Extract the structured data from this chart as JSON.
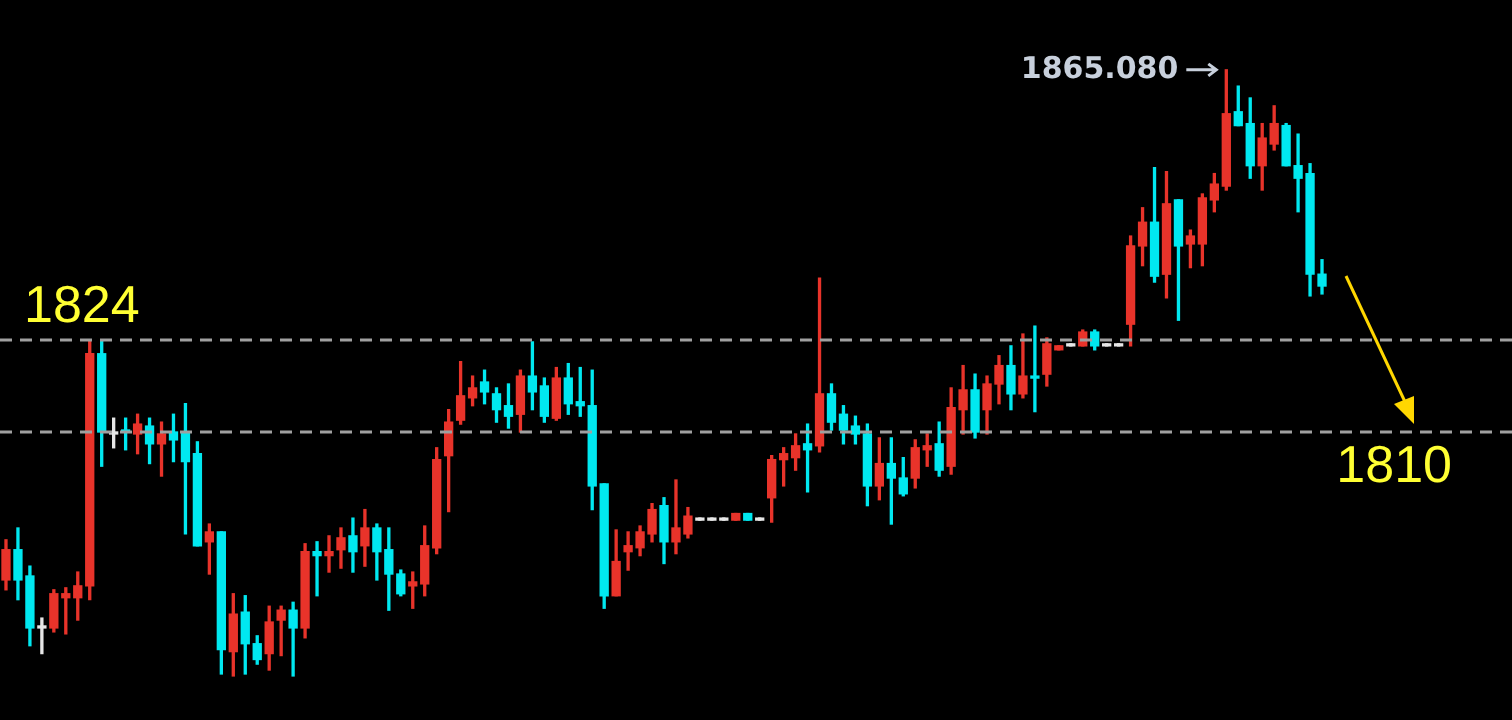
{
  "chart_data": {
    "type": "candlestick",
    "categories": [
      null,
      null,
      null,
      null,
      null,
      null,
      null,
      null,
      null,
      null,
      null,
      null,
      null,
      null,
      null,
      null,
      null,
      null,
      null,
      null,
      null,
      null,
      null,
      null,
      null,
      null,
      null,
      null,
      null,
      null,
      null,
      null,
      null,
      null,
      null,
      null,
      null,
      null,
      null,
      null,
      null,
      null,
      null,
      null,
      null,
      null,
      null,
      null,
      null,
      null,
      null,
      null,
      null,
      null,
      null,
      null,
      null,
      null,
      null,
      null,
      null,
      null,
      null,
      null,
      null,
      null,
      null,
      null,
      null,
      null,
      null,
      null,
      null,
      null,
      null,
      null,
      null,
      null,
      null,
      null,
      null,
      null,
      null,
      null,
      null,
      null,
      null,
      null,
      null,
      null,
      null,
      null,
      null,
      null,
      null,
      null,
      null,
      null,
      null,
      null,
      null,
      null,
      null,
      null,
      null,
      null,
      null,
      null,
      null,
      null,
      null
    ],
    "ohlc": [
      [
        1787.5,
        1793.6,
        1786.0,
        1792.1
      ],
      [
        1792.1,
        1795.4,
        1784.5,
        1787.5
      ],
      [
        1788.1,
        1789.6,
        1777.5,
        1780.2
      ],
      [
        1780.2,
        1781.7,
        1776.3,
        1780.2
      ],
      [
        1780.2,
        1786.0,
        1779.6,
        1785.4
      ],
      [
        1784.8,
        1786.3,
        1779.3,
        1785.4
      ],
      [
        1784.8,
        1788.7,
        1781.4,
        1786.6
      ],
      [
        1786.6,
        1824.0,
        1784.5,
        1821.9
      ],
      [
        1821.9,
        1824.0,
        1804.8,
        1810.0
      ],
      [
        1809.7,
        1812.1,
        1807.6,
        1809.7
      ],
      [
        1810.3,
        1812.1,
        1807.3,
        1810.0
      ],
      [
        1809.7,
        1812.7,
        1806.7,
        1811.2
      ],
      [
        1810.9,
        1812.1,
        1805.2,
        1808.2
      ],
      [
        1808.2,
        1811.5,
        1803.3,
        1809.7
      ],
      [
        1810.0,
        1812.7,
        1805.5,
        1808.8
      ],
      [
        1810.0,
        1814.3,
        1794.5,
        1805.5
      ],
      [
        1806.7,
        1808.5,
        1792.7,
        1792.7
      ],
      [
        1793.3,
        1796.0,
        1788.4,
        1794.8
      ],
      [
        1794.8,
        1794.8,
        1773.2,
        1776.9
      ],
      [
        1776.6,
        1785.4,
        1772.9,
        1782.3
      ],
      [
        1782.6,
        1785.1,
        1773.2,
        1777.8
      ],
      [
        1777.8,
        1779.0,
        1774.7,
        1775.4
      ],
      [
        1776.3,
        1783.5,
        1773.8,
        1781.1
      ],
      [
        1781.4,
        1783.5,
        1776.0,
        1782.9
      ],
      [
        1782.9,
        1784.1,
        1772.9,
        1780.2
      ],
      [
        1780.2,
        1793.0,
        1778.7,
        1791.8
      ],
      [
        1791.8,
        1793.3,
        1785.1,
        1791.2
      ],
      [
        1791.2,
        1794.2,
        1788.7,
        1791.8
      ],
      [
        1792.1,
        1795.4,
        1789.3,
        1793.9
      ],
      [
        1794.2,
        1796.9,
        1788.7,
        1791.8
      ],
      [
        1792.7,
        1798.2,
        1789.6,
        1795.4
      ],
      [
        1795.4,
        1796.0,
        1787.5,
        1791.8
      ],
      [
        1792.1,
        1795.4,
        1782.9,
        1788.4
      ],
      [
        1788.4,
        1789.0,
        1785.1,
        1785.4
      ],
      [
        1786.6,
        1788.7,
        1783.2,
        1787.2
      ],
      [
        1786.9,
        1795.7,
        1785.1,
        1792.7
      ],
      [
        1792.4,
        1807.6,
        1791.5,
        1805.8
      ],
      [
        1806.4,
        1813.4,
        1797.9,
        1811.5
      ],
      [
        1811.8,
        1820.7,
        1811.2,
        1815.5
      ],
      [
        1815.2,
        1818.5,
        1814.0,
        1816.7
      ],
      [
        1817.6,
        1819.4,
        1814.3,
        1816.1
      ],
      [
        1815.8,
        1816.7,
        1811.5,
        1813.4
      ],
      [
        1814.0,
        1817.3,
        1810.6,
        1812.4
      ],
      [
        1812.7,
        1819.4,
        1810.0,
        1818.5
      ],
      [
        1818.5,
        1823.7,
        1813.4,
        1816.1
      ],
      [
        1817.0,
        1818.2,
        1811.5,
        1812.4
      ],
      [
        1812.1,
        1819.8,
        1811.8,
        1818.2
      ],
      [
        1818.2,
        1820.4,
        1812.7,
        1814.3
      ],
      [
        1814.6,
        1819.8,
        1812.4,
        1814.0
      ],
      [
        1814.0,
        1819.4,
        1798.2,
        1801.8
      ],
      [
        1802.1,
        1802.1,
        1783.2,
        1785.1
      ],
      [
        1785.1,
        1795.1,
        1785.1,
        1790.3
      ],
      [
        1791.8,
        1794.8,
        1789.0,
        1792.7
      ],
      [
        1792.4,
        1795.7,
        1791.2,
        1794.8
      ],
      [
        1794.5,
        1799.1,
        1793.3,
        1798.2
      ],
      [
        1798.8,
        1800.0,
        1790.0,
        1793.3
      ],
      [
        1793.3,
        1802.7,
        1791.5,
        1795.4
      ],
      [
        1794.5,
        1798.5,
        1793.9,
        1797.2
      ],
      [
        1796.6,
        1796.6,
        1796.6,
        1796.6
      ],
      [
        1796.6,
        1796.6,
        1796.6,
        1796.6
      ],
      [
        1796.6,
        1796.6,
        1796.6,
        1796.6
      ],
      [
        1796.6,
        1797.6,
        1796.6,
        1797.6
      ],
      [
        1797.6,
        1797.6,
        1796.6,
        1796.6
      ],
      [
        1796.6,
        1796.6,
        1796.6,
        1796.6
      ],
      [
        1800.0,
        1806.4,
        1796.3,
        1805.8
      ],
      [
        1805.8,
        1807.6,
        1801.8,
        1806.7
      ],
      [
        1806.1,
        1809.7,
        1804.2,
        1807.9
      ],
      [
        1808.2,
        1811.2,
        1800.9,
        1807.3
      ],
      [
        1807.9,
        1833.4,
        1807.0,
        1815.8
      ],
      [
        1815.8,
        1817.3,
        1810.3,
        1811.5
      ],
      [
        1812.7,
        1814.0,
        1808.2,
        1810.3
      ],
      [
        1810.9,
        1812.4,
        1808.2,
        1809.7
      ],
      [
        1809.7,
        1811.2,
        1798.8,
        1801.8
      ],
      [
        1801.8,
        1809.1,
        1799.7,
        1805.2
      ],
      [
        1805.2,
        1809.1,
        1796.0,
        1803.0
      ],
      [
        1803.0,
        1806.1,
        1800.3,
        1800.6
      ],
      [
        1803.0,
        1808.8,
        1801.5,
        1807.6
      ],
      [
        1807.3,
        1809.7,
        1804.8,
        1807.9
      ],
      [
        1808.2,
        1811.5,
        1803.3,
        1804.2
      ],
      [
        1804.8,
        1816.7,
        1803.6,
        1813.7
      ],
      [
        1813.4,
        1820.1,
        1809.7,
        1816.4
      ],
      [
        1816.4,
        1818.8,
        1809.1,
        1810.0
      ],
      [
        1813.4,
        1818.5,
        1809.7,
        1817.3
      ],
      [
        1817.3,
        1821.6,
        1814.3,
        1820.1
      ],
      [
        1820.1,
        1823.1,
        1813.4,
        1815.8
      ],
      [
        1815.8,
        1824.9,
        1815.2,
        1818.5
      ],
      [
        1818.5,
        1826.1,
        1813.1,
        1818.2
      ],
      [
        1818.8,
        1824.3,
        1817.0,
        1823.4
      ],
      [
        1822.5,
        1823.1,
        1822.5,
        1823.1
      ],
      [
        1823.1,
        1823.1,
        1823.1,
        1823.1
      ],
      [
        1823.1,
        1825.5,
        1823.1,
        1825.2
      ],
      [
        1825.2,
        1825.5,
        1822.5,
        1823.1
      ],
      [
        1823.1,
        1823.1,
        1823.1,
        1823.1
      ],
      [
        1823.1,
        1823.1,
        1823.1,
        1823.1
      ],
      [
        1826.4,
        1839.8,
        1823.1,
        1838.3
      ],
      [
        1838.3,
        1844.1,
        1835.3,
        1841.9
      ],
      [
        1841.9,
        1850.2,
        1832.8,
        1833.7
      ],
      [
        1834.0,
        1849.6,
        1830.4,
        1844.7
      ],
      [
        1845.3,
        1845.3,
        1827.0,
        1838.3
      ],
      [
        1838.6,
        1840.7,
        1835.0,
        1839.8
      ],
      [
        1838.6,
        1846.2,
        1835.3,
        1845.6
      ],
      [
        1845.3,
        1849.3,
        1843.5,
        1847.7
      ],
      [
        1847.4,
        1865.08,
        1846.8,
        1858.4
      ],
      [
        1858.7,
        1862.6,
        1856.6,
        1856.6
      ],
      [
        1856.9,
        1860.8,
        1848.6,
        1850.5
      ],
      [
        1850.5,
        1856.9,
        1846.8,
        1854.7
      ],
      [
        1853.8,
        1859.6,
        1852.9,
        1856.9
      ],
      [
        1856.6,
        1856.9,
        1850.5,
        1850.5
      ],
      [
        1850.5,
        1855.3,
        1843.5,
        1848.6
      ],
      [
        1849.3,
        1850.8,
        1830.7,
        1834.0
      ],
      [
        1834.0,
        1836.2,
        1831.0,
        1832.2
      ]
    ],
    "colors": [
      "#e8332a",
      "#00e8f0",
      "#00e8f0",
      "#e6e6e6",
      "#e8332a",
      "#e8332a",
      "#e8332a",
      "#e8332a",
      "#00e8f0",
      "#e6e6e6",
      "#00e8f0",
      "#e8332a",
      "#00e8f0",
      "#e8332a",
      "#00e8f0",
      "#00e8f0",
      "#00e8f0",
      "#e8332a",
      "#00e8f0",
      "#e8332a",
      "#00e8f0",
      "#00e8f0",
      "#e8332a",
      "#e8332a",
      "#00e8f0",
      "#e8332a",
      "#00e8f0",
      "#e8332a",
      "#e8332a",
      "#00e8f0",
      "#e8332a",
      "#00e8f0",
      "#00e8f0",
      "#00e8f0",
      "#e8332a",
      "#e8332a",
      "#e8332a",
      "#e8332a",
      "#e8332a",
      "#e8332a",
      "#00e8f0",
      "#00e8f0",
      "#00e8f0",
      "#e8332a",
      "#00e8f0",
      "#00e8f0",
      "#e8332a",
      "#00e8f0",
      "#00e8f0",
      "#00e8f0",
      "#00e8f0",
      "#e8332a",
      "#e8332a",
      "#e8332a",
      "#e8332a",
      "#00e8f0",
      "#e8332a",
      "#e8332a",
      "#e6e6e6",
      "#e6e6e6",
      "#e6e6e6",
      "#e8332a",
      "#00e8f0",
      "#e6e6e6",
      "#e8332a",
      "#e8332a",
      "#e8332a",
      "#00e8f0",
      "#e8332a",
      "#00e8f0",
      "#00e8f0",
      "#00e8f0",
      "#00e8f0",
      "#e8332a",
      "#00e8f0",
      "#00e8f0",
      "#e8332a",
      "#e8332a",
      "#00e8f0",
      "#e8332a",
      "#e8332a",
      "#00e8f0",
      "#e8332a",
      "#e8332a",
      "#00e8f0",
      "#e8332a",
      "#00e8f0",
      "#e8332a",
      "#e8332a",
      "#e6e6e6",
      "#e8332a",
      "#00e8f0",
      "#e6e6e6",
      "#e6e6e6",
      "#e8332a",
      "#e8332a",
      "#00e8f0",
      "#e8332a",
      "#00e8f0",
      "#e8332a",
      "#e8332a",
      "#e8332a",
      "#e8332a",
      "#00e8f0",
      "#00e8f0",
      "#e8332a",
      "#e8332a",
      "#00e8f0",
      "#00e8f0",
      "#00e8f0",
      "#00e8f0"
    ],
    "ylim": [
      1766.2,
      1875.7
    ],
    "tick_labels": false,
    "legend": false,
    "ref_lines": [
      {
        "axis": "y",
        "value": 1824,
        "label": "1824",
        "color": "#a0a0a0",
        "line_style": "dashed"
      },
      {
        "axis": "y",
        "value": 1810,
        "label": "1810",
        "color": "#a0a0a0",
        "line_style": "dashed"
      }
    ],
    "annotations": [
      "1865.080"
    ]
  }
}
